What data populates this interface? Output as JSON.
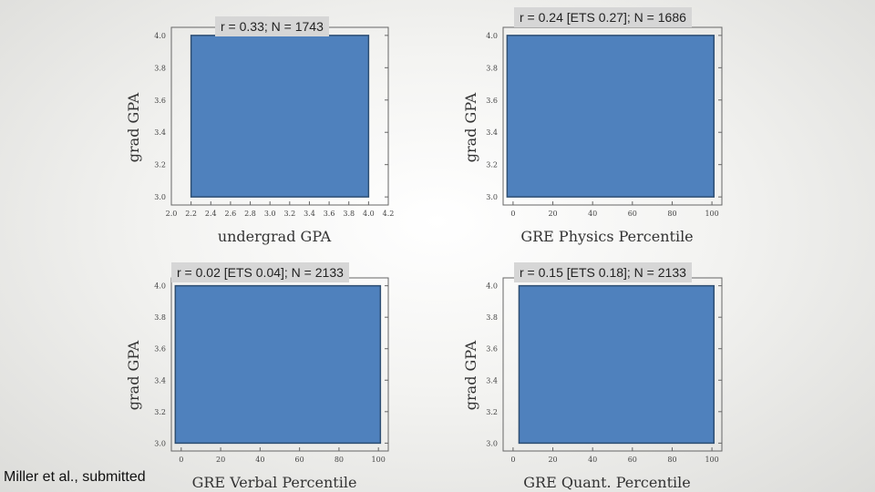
{
  "colors": {
    "fill": "#4f81bd",
    "stroke": "#2f4f73",
    "frame": "#666666"
  },
  "citation": "Miller et al., submitted",
  "chart_data": [
    {
      "type": "heatmap",
      "stat_label": "r = 0.33; N = 1743",
      "ylabel": "grad GPA",
      "xlabel": "undergrad GPA",
      "y_ticks": [
        "4.0",
        "3.8",
        "3.6",
        "3.4",
        "3.2",
        "3.0"
      ],
      "x_ticks": [
        "2.0",
        "2.2",
        "2.4",
        "2.6",
        "2.8",
        "3.0",
        "3.2",
        "3.4",
        "3.6",
        "3.8",
        "4.0",
        "4.2"
      ],
      "xlim": [
        2.0,
        4.2
      ],
      "ylim": [
        2.95,
        4.05
      ],
      "filled_region": {
        "x": [
          2.2,
          4.0
        ],
        "y": [
          3.0,
          4.0
        ]
      }
    },
    {
      "type": "heatmap",
      "stat_label": "r = 0.24 [ETS 0.27]; N = 1686",
      "ylabel": "grad GPA",
      "xlabel": "GRE Physics Percentile",
      "y_ticks": [
        "4.0",
        "3.8",
        "3.6",
        "3.4",
        "3.2",
        "3.0"
      ],
      "x_ticks": [
        "0",
        "20",
        "40",
        "60",
        "80",
        "100"
      ],
      "xlim": [
        -5,
        105
      ],
      "ylim": [
        2.95,
        4.05
      ],
      "filled_region": {
        "x": [
          -3,
          101
        ],
        "y": [
          3.0,
          4.0
        ]
      }
    },
    {
      "type": "heatmap",
      "stat_label": "r = 0.02 [ETS 0.04]; N = 2133",
      "ylabel": "grad GPA",
      "xlabel": "GRE Verbal Percentile",
      "y_ticks": [
        "4.0",
        "3.8",
        "3.6",
        "3.4",
        "3.2",
        "3.0"
      ],
      "x_ticks": [
        "0",
        "20",
        "40",
        "60",
        "80",
        "100"
      ],
      "xlim": [
        -5,
        105
      ],
      "ylim": [
        2.95,
        4.05
      ],
      "filled_region": {
        "x": [
          -3,
          101
        ],
        "y": [
          3.0,
          4.0
        ]
      }
    },
    {
      "type": "heatmap",
      "stat_label": "r = 0.15 [ETS 0.18]; N = 2133",
      "ylabel": "grad GPA",
      "xlabel": "GRE Quant. Percentile",
      "y_ticks": [
        "4.0",
        "3.8",
        "3.6",
        "3.4",
        "3.2",
        "3.0"
      ],
      "x_ticks": [
        "0",
        "20",
        "40",
        "60",
        "80",
        "100"
      ],
      "xlim": [
        -5,
        105
      ],
      "ylim": [
        2.95,
        4.05
      ],
      "filled_region": {
        "x": [
          3,
          101
        ],
        "y": [
          3.0,
          4.0
        ]
      }
    }
  ]
}
